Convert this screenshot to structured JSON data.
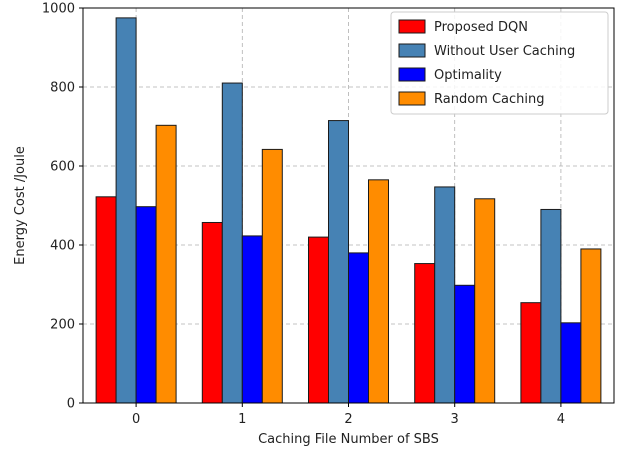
{
  "chart_data": {
    "type": "bar",
    "xlabel": "Caching File Number of SBS",
    "ylabel": "Energy Cost /Joule",
    "categories": [
      "0",
      "1",
      "2",
      "3",
      "4"
    ],
    "ylim": [
      0,
      1000
    ],
    "yticks": [
      0,
      200,
      400,
      600,
      800,
      1000
    ],
    "grid": true,
    "legend_position": "top-right",
    "series": [
      {
        "name": "Proposed DQN",
        "color": "#ff0000",
        "values": [
          522,
          457,
          420,
          353,
          254
        ]
      },
      {
        "name": "Without User Caching",
        "color": "#4682b4",
        "values": [
          975,
          810,
          715,
          547,
          490
        ]
      },
      {
        "name": "Optimality",
        "color": "#0000ff",
        "values": [
          497,
          423,
          380,
          298,
          203
        ]
      },
      {
        "name": "Random Caching",
        "color": "#ff8c00",
        "values": [
          703,
          642,
          565,
          517,
          390
        ]
      }
    ]
  }
}
